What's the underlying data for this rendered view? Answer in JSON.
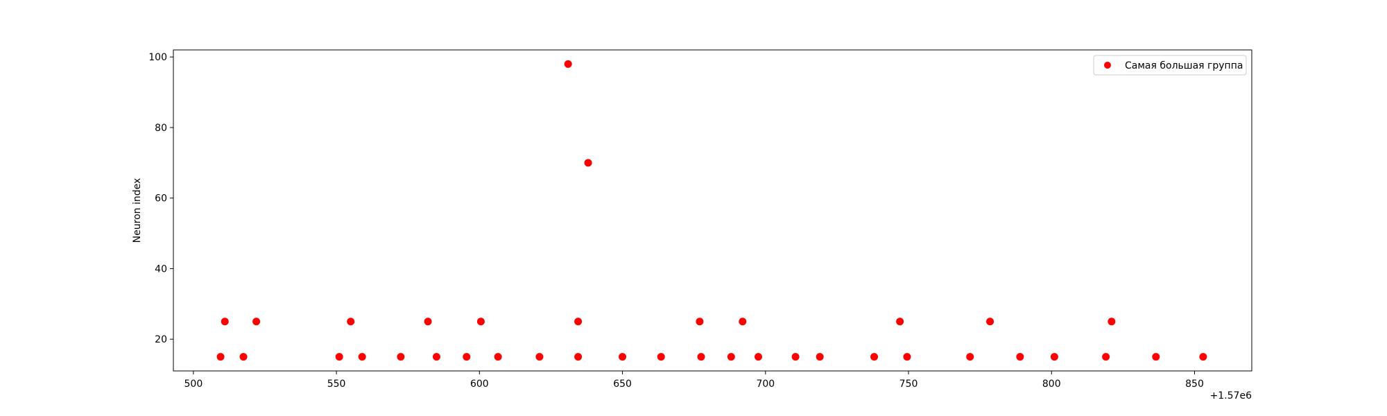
{
  "chart_data": {
    "type": "scatter",
    "title": "",
    "xlabel": "",
    "ylabel": "Neuron index",
    "x_offset_label": "+1.57e6",
    "xlim": [
      1570493,
      1570870
    ],
    "ylim": [
      11,
      102
    ],
    "xticks": [
      500,
      550,
      600,
      650,
      700,
      750,
      800,
      850
    ],
    "yticks": [
      20,
      40,
      60,
      80,
      100
    ],
    "grid": false,
    "legend_position": "top-right",
    "marker_color": "#ff0000",
    "series": [
      {
        "name": "Самая большая группа",
        "color": "#ff0000",
        "points": [
          {
            "x": 1570509.5,
            "y": 15
          },
          {
            "x": 1570511,
            "y": 25
          },
          {
            "x": 1570517.5,
            "y": 15
          },
          {
            "x": 1570522,
            "y": 25
          },
          {
            "x": 1570551,
            "y": 15
          },
          {
            "x": 1570555,
            "y": 25
          },
          {
            "x": 1570559,
            "y": 15
          },
          {
            "x": 1570572.5,
            "y": 15
          },
          {
            "x": 1570582,
            "y": 25
          },
          {
            "x": 1570585,
            "y": 15
          },
          {
            "x": 1570595.5,
            "y": 15
          },
          {
            "x": 1570600.5,
            "y": 25
          },
          {
            "x": 1570606.5,
            "y": 15
          },
          {
            "x": 1570621,
            "y": 15
          },
          {
            "x": 1570631,
            "y": 98
          },
          {
            "x": 1570634.5,
            "y": 25
          },
          {
            "x": 1570634.5,
            "y": 15
          },
          {
            "x": 1570638,
            "y": 70
          },
          {
            "x": 1570650,
            "y": 15
          },
          {
            "x": 1570663.5,
            "y": 15
          },
          {
            "x": 1570677,
            "y": 25
          },
          {
            "x": 1570677.5,
            "y": 15
          },
          {
            "x": 1570688,
            "y": 15
          },
          {
            "x": 1570692,
            "y": 25
          },
          {
            "x": 1570697.5,
            "y": 15
          },
          {
            "x": 1570710.5,
            "y": 15
          },
          {
            "x": 1570719,
            "y": 15
          },
          {
            "x": 1570738,
            "y": 15
          },
          {
            "x": 1570747,
            "y": 25
          },
          {
            "x": 1570749.5,
            "y": 15
          },
          {
            "x": 1570771.5,
            "y": 15
          },
          {
            "x": 1570778.5,
            "y": 25
          },
          {
            "x": 1570789,
            "y": 15
          },
          {
            "x": 1570801,
            "y": 15
          },
          {
            "x": 1570819,
            "y": 15
          },
          {
            "x": 1570821,
            "y": 25
          },
          {
            "x": 1570836.5,
            "y": 15
          },
          {
            "x": 1570853,
            "y": 15
          }
        ]
      }
    ]
  }
}
